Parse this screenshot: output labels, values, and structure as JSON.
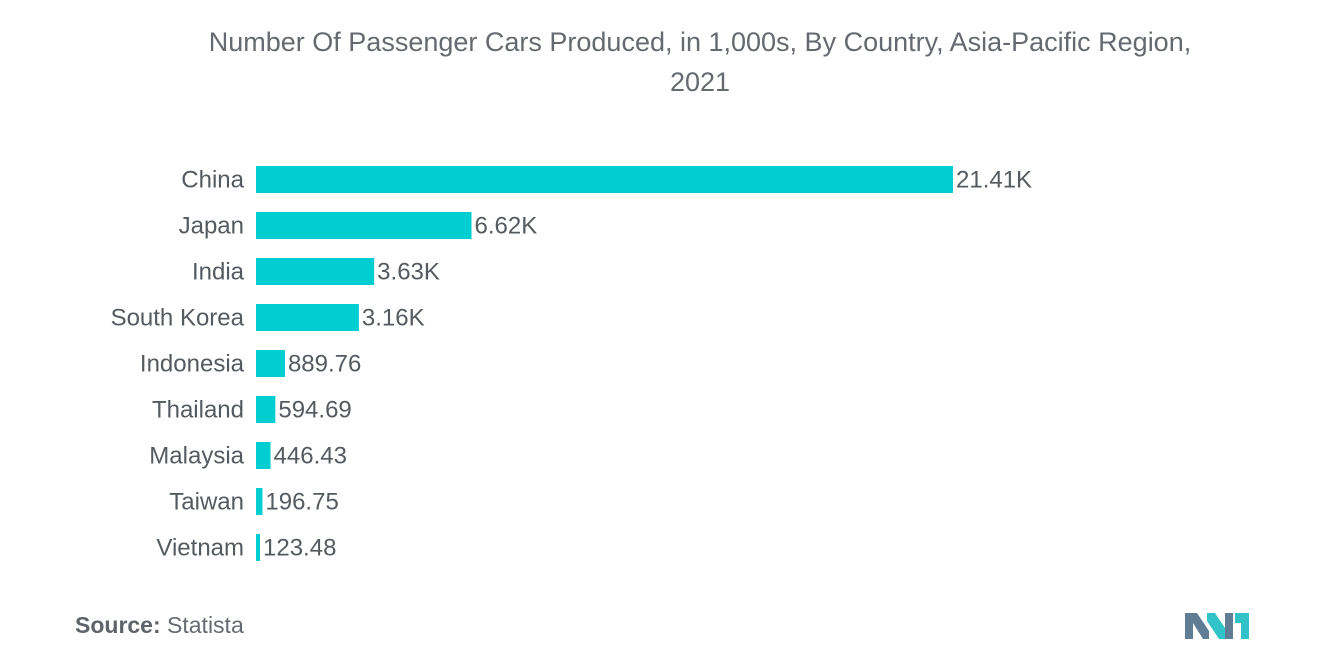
{
  "title_line1": "Number Of Passenger Cars Produced, in 1,000s, By Country, Asia-Pacific Region,",
  "title_line2": "2021",
  "source_label": "Source:",
  "source_value": "Statista",
  "colors": {
    "bar": "#00ced1",
    "text": "#555a60",
    "logo_dark": "#5f7d95",
    "logo_light": "#32c3c8"
  },
  "chart_data": {
    "type": "bar",
    "orientation": "horizontal",
    "title": "Number Of Passenger Cars Produced, in 1,000s, By Country, Asia-Pacific Region, 2021",
    "categories": [
      "China",
      "Japan",
      "India",
      "South Korea",
      "Indonesia",
      "Thailand",
      "Malaysia",
      "Taiwan",
      "Vietnam"
    ],
    "values": [
      21410,
      6620,
      3630,
      3160,
      889.76,
      594.69,
      446.43,
      196.75,
      123.48
    ],
    "value_labels": [
      "21.41K",
      "6.62K",
      "3.63K",
      "3.16K",
      "889.76",
      "594.69",
      "446.43",
      "196.75",
      "123.48"
    ],
    "xlim": [
      0,
      21410
    ],
    "grid": false,
    "legend": "none"
  }
}
